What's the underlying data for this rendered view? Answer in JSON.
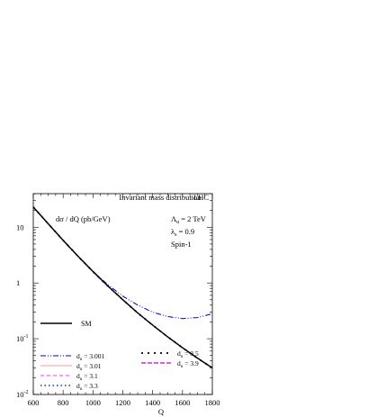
{
  "chart_data": {
    "type": "line",
    "title": "Invariant mass distribution",
    "title_right": "LHC",
    "ylabel": "dσ / dQ (pb/GeV)",
    "xlabel": "Q",
    "xlim": [
      600,
      1800
    ],
    "ylim": [
      0.01,
      40
    ],
    "y_scale": "log",
    "x_ticks": [
      600,
      800,
      1000,
      1200,
      1400,
      1600,
      1800
    ],
    "y_ticks": [
      {
        "value": 10,
        "label": "10"
      },
      {
        "value": 1,
        "label": "1"
      },
      {
        "value": 0.1,
        "label": "10",
        "exp": "-1"
      },
      {
        "value": 0.01,
        "label": "10",
        "exp": "-2"
      }
    ],
    "info": {
      "lambda": {
        "sym": "Λ",
        "sub": "u",
        "val": " = 2 TeV"
      },
      "lam": {
        "sym": "λ",
        "sub": "s",
        "val": " = 0.9"
      },
      "spin": "Spin-1"
    },
    "legend_placement": "bottom-left",
    "series": [
      {
        "name": "SM",
        "color": "#000000",
        "dash": "",
        "width": 1.4,
        "x": [
          600,
          700,
          800,
          900,
          1000,
          1100,
          1200,
          1300,
          1400,
          1500,
          1600,
          1700,
          1800
        ],
        "y": [
          23,
          11.5,
          5.8,
          3.0,
          1.6,
          0.88,
          0.5,
          0.29,
          0.175,
          0.108,
          0.069,
          0.045,
          0.03
        ]
      },
      {
        "name": "3.001",
        "sym": "d",
        "sub": "u",
        "color": "#0000cc",
        "dash": "6,2,1,2,1,2",
        "width": 1,
        "x": [
          600,
          700,
          800,
          900,
          1000,
          1100,
          1200,
          1300,
          1400,
          1500,
          1600,
          1700,
          1800
        ],
        "y": [
          23,
          11.5,
          5.8,
          3.0,
          1.62,
          0.93,
          0.58,
          0.4,
          0.3,
          0.25,
          0.23,
          0.24,
          0.28
        ]
      },
      {
        "name": "3.01",
        "sym": "d",
        "sub": "u",
        "color": "#ff9999",
        "dash": "",
        "width": 1,
        "x": [
          600,
          700,
          800,
          900,
          1000,
          1100,
          1200,
          1300,
          1400,
          1500,
          1600,
          1700,
          1800
        ],
        "y": [
          23,
          11.5,
          5.8,
          3.0,
          1.6,
          0.88,
          0.5,
          0.29,
          0.175,
          0.108,
          0.069,
          0.045,
          0.03
        ]
      },
      {
        "name": "3.1",
        "sym": "d",
        "sub": "u",
        "color": "#ff33ff",
        "dash": "4,3",
        "width": 1,
        "x": [
          600,
          700,
          800,
          900,
          1000,
          1100,
          1200,
          1300,
          1400,
          1500,
          1600,
          1700,
          1800
        ],
        "y": [
          23,
          11.5,
          5.8,
          3.0,
          1.6,
          0.88,
          0.5,
          0.29,
          0.175,
          0.108,
          0.069,
          0.045,
          0.03
        ]
      },
      {
        "name": "3.3",
        "sym": "d",
        "sub": "u",
        "color": "#000099",
        "dash": "1.5,3",
        "width": 1.3,
        "x": [
          600,
          700,
          800,
          900,
          1000,
          1100,
          1200,
          1300,
          1400,
          1500,
          1600,
          1700,
          1800
        ],
        "y": [
          23,
          11.5,
          5.8,
          3.0,
          1.6,
          0.88,
          0.5,
          0.29,
          0.175,
          0.108,
          0.069,
          0.045,
          0.03
        ]
      },
      {
        "name": "3.5",
        "sym": "d",
        "sub": "u",
        "color": "#000000",
        "dash": "2,5",
        "width": 1.8,
        "x": [
          600,
          700,
          800,
          900,
          1000,
          1100,
          1200,
          1300,
          1400,
          1500,
          1600,
          1700,
          1800
        ],
        "y": [
          23,
          11.5,
          5.8,
          3.0,
          1.6,
          0.88,
          0.5,
          0.29,
          0.175,
          0.108,
          0.069,
          0.045,
          0.03
        ]
      },
      {
        "name": "3.9",
        "sym": "d",
        "sub": "u",
        "color": "#cc00cc",
        "dash": "5,2",
        "width": 1.3,
        "x": [
          600,
          700,
          800,
          900,
          1000,
          1100,
          1200,
          1300,
          1400,
          1500,
          1600,
          1700,
          1800
        ],
        "y": [
          23,
          11.5,
          5.8,
          3.0,
          1.6,
          0.88,
          0.5,
          0.29,
          0.175,
          0.108,
          0.069,
          0.045,
          0.03
        ]
      }
    ]
  }
}
